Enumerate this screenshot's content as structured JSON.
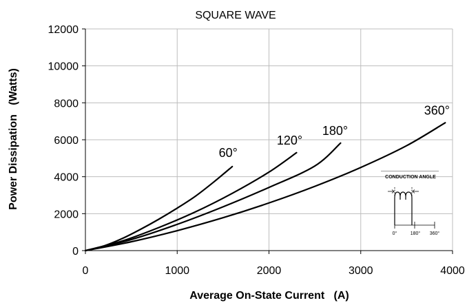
{
  "chart_data": {
    "type": "line",
    "title": "SQUARE WAVE",
    "xlabel": "Average On-State Current   (A)",
    "ylabel": "Power Dissipation   (Watts)",
    "xlim": [
      0,
      4000
    ],
    "ylim": [
      0,
      12000
    ],
    "xticks": [
      0,
      1000,
      2000,
      3000,
      4000
    ],
    "yticks": [
      0,
      2000,
      4000,
      6000,
      8000,
      10000,
      12000
    ],
    "grid": true,
    "series": [
      {
        "name": "60°",
        "color": "#000000",
        "x": [
          0,
          200,
          400,
          600,
          800,
          1000,
          1200,
          1400,
          1600
        ],
        "y": [
          0,
          250,
          650,
          1150,
          1700,
          2300,
          2950,
          3720,
          4550
        ]
      },
      {
        "name": "120°",
        "color": "#000000",
        "x": [
          0,
          400,
          800,
          1200,
          1600,
          2000,
          2300
        ],
        "y": [
          0,
          520,
          1250,
          2100,
          3100,
          4250,
          5300
        ]
      },
      {
        "name": "180°",
        "color": "#000000",
        "x": [
          0,
          500,
          1000,
          1500,
          2000,
          2500,
          2780
        ],
        "y": [
          0,
          600,
          1420,
          2370,
          3420,
          4580,
          5820
        ]
      },
      {
        "name": "360°",
        "color": "#000000",
        "x": [
          0,
          500,
          1000,
          1500,
          2000,
          2500,
          3000,
          3500,
          3920
        ],
        "y": [
          0,
          480,
          1080,
          1780,
          2580,
          3480,
          4500,
          5680,
          6920
        ]
      }
    ],
    "inset": {
      "title": "CONDUCTION ANGLE",
      "tick_labels": [
        "0°",
        "180°",
        "360°"
      ]
    }
  }
}
